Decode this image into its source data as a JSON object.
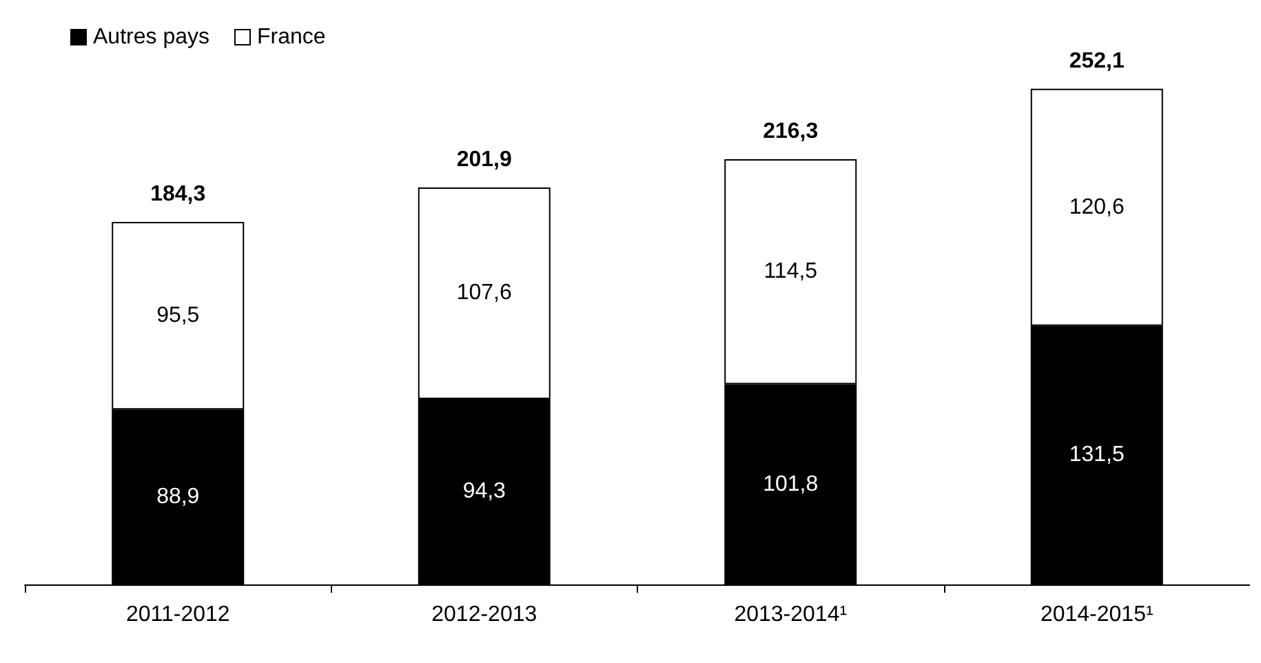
{
  "chart_data": {
    "type": "bar",
    "stacked": true,
    "categories": [
      "2011-2012",
      "2012-2013",
      "2013-2014¹",
      "2014-2015¹"
    ],
    "series": [
      {
        "name": "Autres pays",
        "color": "#000000",
        "values": [
          88.9,
          94.3,
          101.8,
          131.5
        ],
        "value_labels": [
          "88,9",
          "94,3",
          "101,8",
          "131,5"
        ]
      },
      {
        "name": "France",
        "color": "#ffffff",
        "values": [
          95.5,
          107.6,
          114.5,
          120.6
        ],
        "value_labels": [
          "95,5",
          "107,6",
          "114,5",
          "120,6"
        ]
      }
    ],
    "totals": [
      "184,3",
      "201,9",
      "216,3",
      "252,1"
    ],
    "tick_labels": "x",
    "legend": "top left"
  }
}
